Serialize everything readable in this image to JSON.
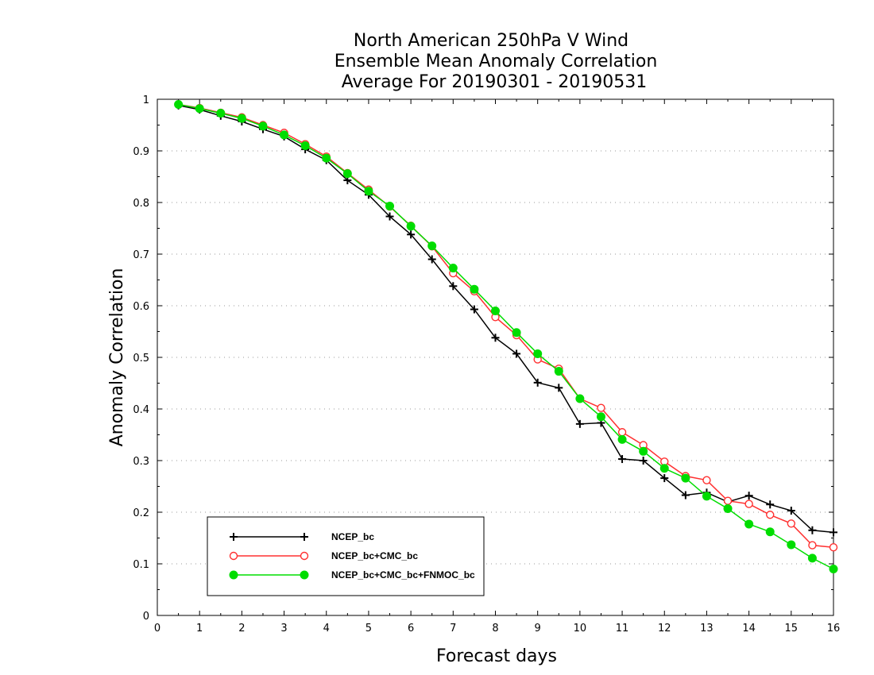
{
  "chart_data": {
    "type": "line",
    "title": [
      "North American 250hPa V Wind",
      "Ensemble Mean Anomaly Correlation",
      "Average For 20190301 - 20190531"
    ],
    "xlabel": "Forecast days",
    "ylabel": "Anomaly Correlation",
    "xlim": [
      0,
      16
    ],
    "ylim": [
      0,
      1
    ],
    "xticks": [
      "0",
      "1",
      "2",
      "3",
      "4",
      "5",
      "6",
      "7",
      "8",
      "9",
      "10",
      "11",
      "12",
      "13",
      "14",
      "15",
      "16"
    ],
    "yticks": [
      "0",
      "0.1",
      "0.2",
      "0.3",
      "0.4",
      "0.5",
      "0.6",
      "0.7",
      "0.8",
      "0.9",
      "1"
    ],
    "grid": "horizontal dotted",
    "legend_position": "bottom-left",
    "x": [
      0.5,
      1,
      1.5,
      2,
      2.5,
      3,
      3.5,
      4,
      4.5,
      5,
      5.5,
      6,
      6.5,
      7,
      7.5,
      8,
      8.5,
      9,
      9.5,
      10,
      10.5,
      11,
      11.5,
      12,
      12.5,
      13,
      13.5,
      14,
      14.5,
      15,
      15.5,
      16
    ],
    "series": [
      {
        "name": "NCEP_bc",
        "color": "#000000",
        "marker": "plus",
        "values": [
          0.988,
          0.98,
          0.968,
          0.957,
          0.942,
          0.928,
          0.903,
          0.882,
          0.843,
          0.815,
          0.773,
          0.738,
          0.69,
          0.638,
          0.593,
          0.538,
          0.507,
          0.451,
          0.441,
          0.371,
          0.373,
          0.303,
          0.3,
          0.266,
          0.233,
          0.238,
          0.22,
          0.232,
          0.215,
          0.203,
          0.165,
          0.161
        ]
      },
      {
        "name": "NCEP_bc+CMC_bc",
        "color": "#ff3030",
        "marker": "open-circle",
        "values": [
          0.99,
          0.983,
          0.974,
          0.965,
          0.95,
          0.935,
          0.913,
          0.889,
          0.857,
          0.825,
          0.792,
          0.755,
          0.715,
          0.663,
          0.628,
          0.578,
          0.543,
          0.496,
          0.478,
          0.42,
          0.402,
          0.355,
          0.33,
          0.298,
          0.27,
          0.262,
          0.222,
          0.216,
          0.195,
          0.178,
          0.136,
          0.132
        ]
      },
      {
        "name": "NCEP_bc+CMC_bc+FNMOC_bc",
        "color": "#00dd00",
        "marker": "filled-circle",
        "values": [
          0.99,
          0.982,
          0.973,
          0.963,
          0.948,
          0.931,
          0.91,
          0.886,
          0.856,
          0.822,
          0.793,
          0.754,
          0.716,
          0.673,
          0.632,
          0.59,
          0.548,
          0.507,
          0.473,
          0.42,
          0.385,
          0.341,
          0.318,
          0.285,
          0.266,
          0.231,
          0.207,
          0.177,
          0.162,
          0.137,
          0.111,
          0.09
        ]
      }
    ]
  }
}
